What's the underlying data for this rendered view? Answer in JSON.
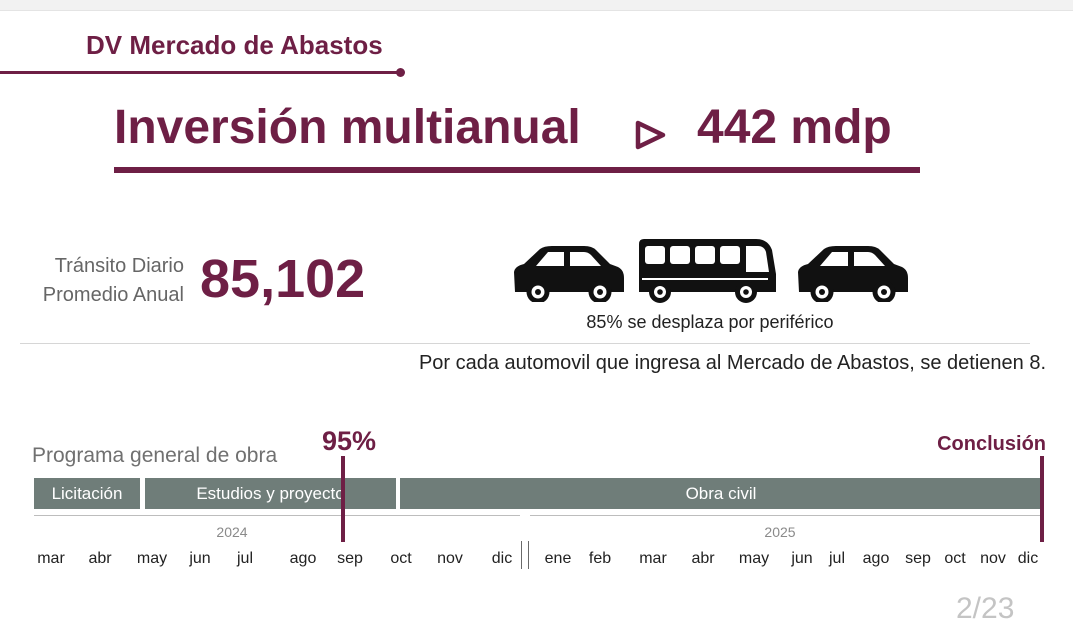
{
  "section": {
    "title": "DV Mercado de Abastos"
  },
  "headline": {
    "label": "Inversión multianual",
    "value": "442 mdp"
  },
  "metric": {
    "label_line1": "Tránsito Diario",
    "label_line2": "Promedio Anual",
    "value": "85,102"
  },
  "vehicles": {
    "icons": [
      "car-icon",
      "bus-icon",
      "car-icon"
    ],
    "caption": "85% se desplaza por periférico"
  },
  "statement": "Por cada automovil que ingresa al Mercado de Abastos, se detienen 8.",
  "program": {
    "label": "Programa general de obra",
    "progress": "95%",
    "conclusion": "Conclusión",
    "phases": [
      "Licitación",
      "Estudios y proyecto",
      "Obra civil"
    ],
    "years": [
      "2024",
      "2025"
    ],
    "months_2024": [
      "mar",
      "abr",
      "may",
      "jun",
      "jul",
      "ago",
      "sep",
      "oct",
      "nov",
      "dic"
    ],
    "months_2025": [
      "ene",
      "feb",
      "mar",
      "abr",
      "may",
      "jun",
      "jul",
      "ago",
      "sep",
      "oct",
      "nov",
      "dic"
    ]
  },
  "page_number": "2/23",
  "colors": {
    "accent": "#6e1f45",
    "phase_bar": "#6f7d79"
  }
}
